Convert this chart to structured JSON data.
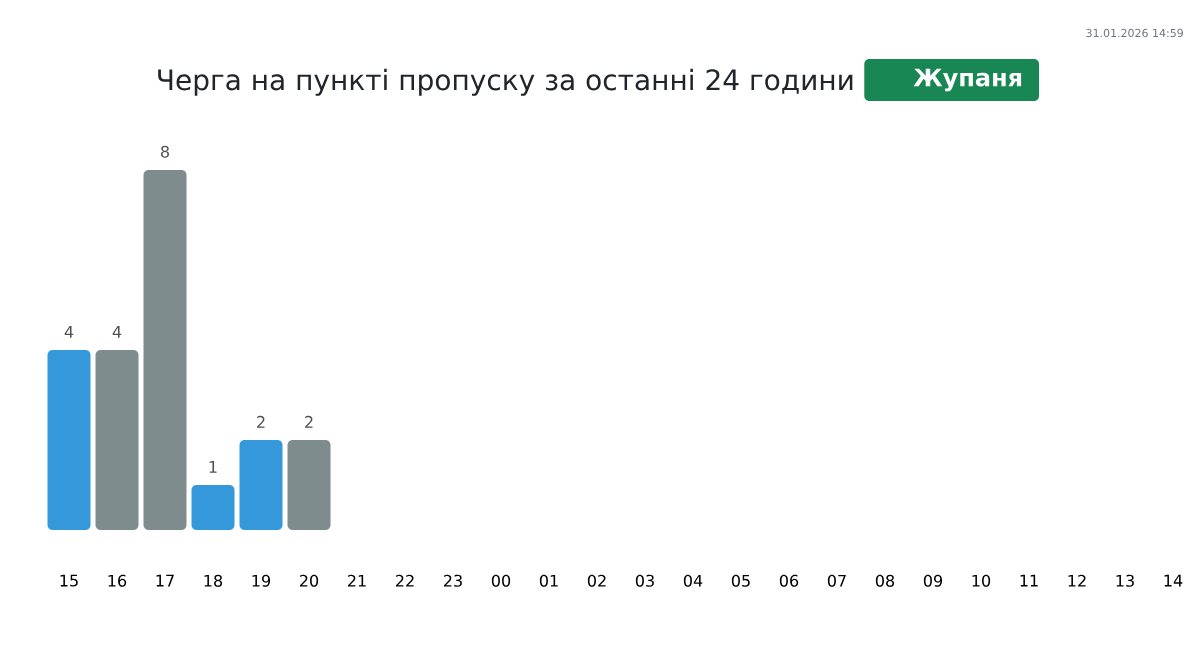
{
  "chart_data": {
    "type": "bar",
    "title": "Черга на пункті пропуску за останні 24 години",
    "subtitle": "Жупаня",
    "annotations": [
      "31.01.2026 14:59"
    ],
    "categories": [
      "15",
      "16",
      "17",
      "18",
      "19",
      "20",
      "21",
      "22",
      "23",
      "00",
      "01",
      "02",
      "03",
      "04",
      "05",
      "06",
      "07",
      "08",
      "09",
      "10",
      "11",
      "12",
      "13",
      "14"
    ],
    "values": [
      4,
      4,
      8,
      1,
      2,
      2,
      null,
      null,
      null,
      null,
      null,
      null,
      null,
      null,
      null,
      null,
      null,
      null,
      null,
      null,
      null,
      null,
      null,
      null
    ],
    "colors": [
      "#3498db",
      "#7f8c8d",
      "#7f8c8d",
      "#3498db",
      "#3498db",
      "#7f8c8d",
      null,
      null,
      null,
      null,
      null,
      null,
      null,
      null,
      null,
      null,
      null,
      null,
      null,
      null,
      null,
      null,
      null,
      null
    ],
    "ylim": [
      0,
      8
    ],
    "data_labels": true,
    "tick_labels": "x"
  }
}
